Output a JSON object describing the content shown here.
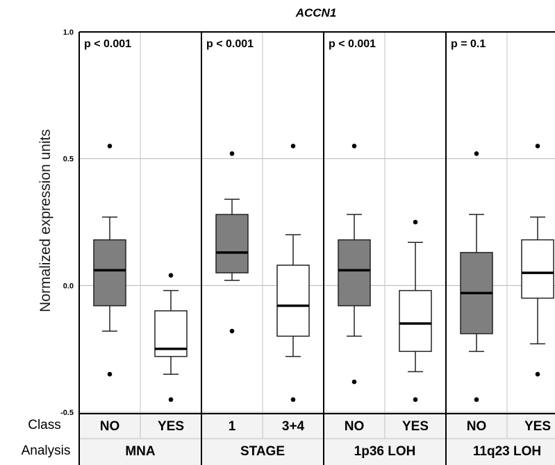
{
  "chart_data": {
    "type": "boxplot",
    "title": "ACCN1",
    "ylabel": "Normalized expression units",
    "ylim": [
      -0.5,
      1.0
    ],
    "yticks": [
      "1.0",
      "0.5",
      "0.0",
      "-0.5"
    ],
    "ytick_values": [
      1.0,
      0.5,
      0.0,
      -0.5
    ],
    "row_labels": {
      "class": "Class",
      "analysis": "Analysis"
    },
    "fill_colors": {
      "first_class": "#7f7f7f",
      "second_class": "#ffffff"
    },
    "panels": [
      {
        "analysis": "MNA",
        "pvalue": "p < 0.001",
        "groups": [
          {
            "class": "NO",
            "whisker_low": -0.18,
            "q1": -0.08,
            "median": 0.06,
            "q3": 0.18,
            "whisker_high": 0.27,
            "outliers": [
              0.55,
              -0.35
            ]
          },
          {
            "class": "YES",
            "whisker_low": -0.35,
            "q1": -0.28,
            "median": -0.25,
            "q3": -0.1,
            "whisker_high": -0.02,
            "outliers": [
              0.04,
              -0.45
            ]
          }
        ]
      },
      {
        "analysis": "STAGE",
        "pvalue": "p < 0.001",
        "groups": [
          {
            "class": "1",
            "whisker_low": 0.02,
            "q1": 0.05,
            "median": 0.13,
            "q3": 0.28,
            "whisker_high": 0.34,
            "outliers": [
              0.52,
              -0.18
            ]
          },
          {
            "class": "3+4",
            "whisker_low": -0.28,
            "q1": -0.2,
            "median": -0.08,
            "q3": 0.08,
            "whisker_high": 0.2,
            "outliers": [
              0.55,
              -0.45
            ]
          }
        ]
      },
      {
        "analysis": "1p36 LOH",
        "pvalue": "p < 0.001",
        "groups": [
          {
            "class": "NO",
            "whisker_low": -0.2,
            "q1": -0.08,
            "median": 0.06,
            "q3": 0.18,
            "whisker_high": 0.28,
            "outliers": [
              0.55,
              -0.38
            ]
          },
          {
            "class": "YES",
            "whisker_low": -0.34,
            "q1": -0.26,
            "median": -0.15,
            "q3": -0.02,
            "whisker_high": 0.17,
            "outliers": [
              0.25,
              -0.45
            ]
          }
        ]
      },
      {
        "analysis": "11q23 LOH",
        "pvalue": "p = 0.1",
        "groups": [
          {
            "class": "NO",
            "whisker_low": -0.26,
            "q1": -0.19,
            "median": -0.03,
            "q3": 0.13,
            "whisker_high": 0.28,
            "outliers": [
              0.52,
              -0.45
            ]
          },
          {
            "class": "YES",
            "whisker_low": -0.23,
            "q1": -0.05,
            "median": 0.05,
            "q3": 0.18,
            "whisker_high": 0.27,
            "outliers": [
              0.55,
              -0.35
            ]
          }
        ]
      }
    ]
  }
}
